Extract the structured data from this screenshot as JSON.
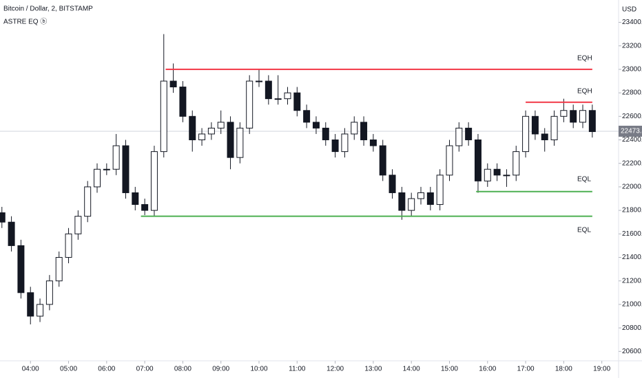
{
  "chart_data": {
    "type": "candlestick",
    "title": "Bitcoin / Dollar, 2, BITSTAMP",
    "subtitle": "ASTRE EQ ⓑ",
    "currency": "USD",
    "x": [
      3.25,
      3.5,
      3.75,
      4,
      4.25,
      4.5,
      4.75,
      5,
      5.25,
      5.5,
      5.75,
      6,
      6.25,
      6.5,
      6.75,
      7,
      7.25,
      7.5,
      7.75,
      8,
      8.25,
      8.5,
      8.75,
      9,
      9.25,
      9.5,
      9.75,
      10,
      10.25,
      10.5,
      10.75,
      11,
      11.25,
      11.5,
      11.75,
      12,
      12.25,
      12.5,
      12.75,
      13,
      13.25,
      13.5,
      13.75,
      14,
      14.25,
      14.5,
      14.75,
      15,
      15.25,
      15.5,
      15.75,
      16,
      16.25,
      16.5,
      16.75,
      17,
      17.25,
      17.5,
      17.75,
      18,
      18.25,
      18.5,
      18.75
    ],
    "open": [
      21780,
      21700,
      21500,
      21100,
      20900,
      21000,
      21200,
      21400,
      21600,
      21750,
      22000,
      22150,
      22150,
      22350,
      21950,
      21850,
      21800,
      22300,
      22900,
      22850,
      22600,
      22400,
      22450,
      22500,
      22550,
      22250,
      22500,
      22900,
      22900,
      22750,
      22750,
      22800,
      22650,
      22550,
      22500,
      22400,
      22300,
      22450,
      22550,
      22400,
      22350,
      22100,
      21950,
      21800,
      21900,
      21950,
      21850,
      22100,
      22350,
      22500,
      22400,
      22050,
      22150,
      22100,
      22100,
      22300,
      22600,
      22450,
      22400,
      22600,
      22650,
      22550,
      22650
    ],
    "high": [
      21830,
      21750,
      21550,
      21150,
      21050,
      21250,
      21450,
      21650,
      21800,
      22050,
      22200,
      22200,
      22450,
      22400,
      22000,
      21900,
      22350,
      23300,
      23050,
      22900,
      22650,
      22500,
      22550,
      22650,
      22600,
      22550,
      22950,
      23000,
      22950,
      22950,
      22850,
      22850,
      22700,
      22600,
      22550,
      22450,
      22500,
      22600,
      22600,
      22450,
      22400,
      22150,
      22000,
      21950,
      22000,
      22000,
      22150,
      22400,
      22550,
      22550,
      22450,
      22200,
      22200,
      22150,
      22350,
      22650,
      22650,
      22500,
      22650,
      22750,
      22700,
      22700,
      22700
    ],
    "low": [
      21650,
      21450,
      21050,
      20830,
      20850,
      20950,
      21150,
      21350,
      21550,
      21700,
      21950,
      22100,
      22100,
      21900,
      21800,
      21760,
      21750,
      22250,
      22800,
      22550,
      22300,
      22350,
      22400,
      22450,
      22150,
      22200,
      22450,
      22850,
      22700,
      22700,
      22700,
      22600,
      22500,
      22450,
      22350,
      22250,
      22250,
      22400,
      22350,
      22300,
      22050,
      21900,
      21720,
      21750,
      21850,
      21800,
      21800,
      22050,
      22300,
      22350,
      21950,
      22000,
      22050,
      22000,
      22050,
      22250,
      22400,
      22300,
      22350,
      22550,
      22500,
      22500,
      22420
    ],
    "close": [
      21700,
      21500,
      21100,
      20900,
      21000,
      21200,
      21400,
      21600,
      21750,
      22000,
      22150,
      22150,
      22350,
      21950,
      21850,
      21800,
      22300,
      22900,
      22850,
      22600,
      22400,
      22450,
      22500,
      22550,
      22250,
      22500,
      22900,
      22900,
      22750,
      22750,
      22800,
      22650,
      22550,
      22500,
      22400,
      22300,
      22450,
      22550,
      22400,
      22350,
      22100,
      21950,
      21800,
      21900,
      21950,
      21850,
      22100,
      22350,
      22500,
      22400,
      22050,
      22150,
      22100,
      22100,
      22300,
      22600,
      22450,
      22400,
      22600,
      22650,
      22550,
      22650,
      22470
    ],
    "up_color": "#ffffff",
    "down_color": "#131722",
    "levels": [
      {
        "label": "EQH",
        "value": 23000,
        "x": [
          7.55,
          18.75
        ],
        "color": "#f23645"
      },
      {
        "label": "EQH",
        "value": 22720,
        "x": [
          17.0,
          18.75
        ],
        "color": "#f23645"
      },
      {
        "label": "EQL",
        "value": 21960,
        "x": [
          15.7,
          18.75
        ],
        "color": "#4caf50"
      },
      {
        "label": "EQL",
        "value": 21750,
        "x": [
          6.9,
          18.75
        ],
        "color": "#4caf50"
      }
    ],
    "last_price": 22473.47,
    "xlim": [
      3.2,
      19.44
    ],
    "ylim": [
      20520,
      23590
    ],
    "xticks": [
      {
        "value": 4,
        "label": "04:00"
      },
      {
        "value": 5,
        "label": "05:00"
      },
      {
        "value": 6,
        "label": "06:00"
      },
      {
        "value": 7,
        "label": "07:00"
      },
      {
        "value": 8,
        "label": "08:00"
      },
      {
        "value": 9,
        "label": "09:00"
      },
      {
        "value": 10,
        "label": "10:00"
      },
      {
        "value": 11,
        "label": "11:00"
      },
      {
        "value": 12,
        "label": "12:00"
      },
      {
        "value": 13,
        "label": "13:00"
      },
      {
        "value": 14,
        "label": "14:00"
      },
      {
        "value": 15,
        "label": "15:00"
      },
      {
        "value": 16,
        "label": "16:00"
      },
      {
        "value": 17,
        "label": "17:00"
      },
      {
        "value": 18,
        "label": "18:00"
      },
      {
        "value": 19,
        "label": "19:00"
      }
    ],
    "yticks": [
      {
        "value": 20600,
        "label": "20600.00"
      },
      {
        "value": 20800,
        "label": "20800.00"
      },
      {
        "value": 21000,
        "label": "21000.00"
      },
      {
        "value": 21200,
        "label": "21200.00"
      },
      {
        "value": 21400,
        "label": "21400.00"
      },
      {
        "value": 21600,
        "label": "21600.00"
      },
      {
        "value": 21800,
        "label": "21800.00"
      },
      {
        "value": 22000,
        "label": "22000.00"
      },
      {
        "value": 22200,
        "label": "22200.00"
      },
      {
        "value": 22400,
        "label": "22400.00"
      },
      {
        "value": 22600,
        "label": "22600.00"
      },
      {
        "value": 22800,
        "label": "22800.00"
      },
      {
        "value": 23000,
        "label": "23000.00"
      },
      {
        "value": 23200,
        "label": "23200.00"
      },
      {
        "value": 23400,
        "label": "23400.00"
      }
    ]
  }
}
